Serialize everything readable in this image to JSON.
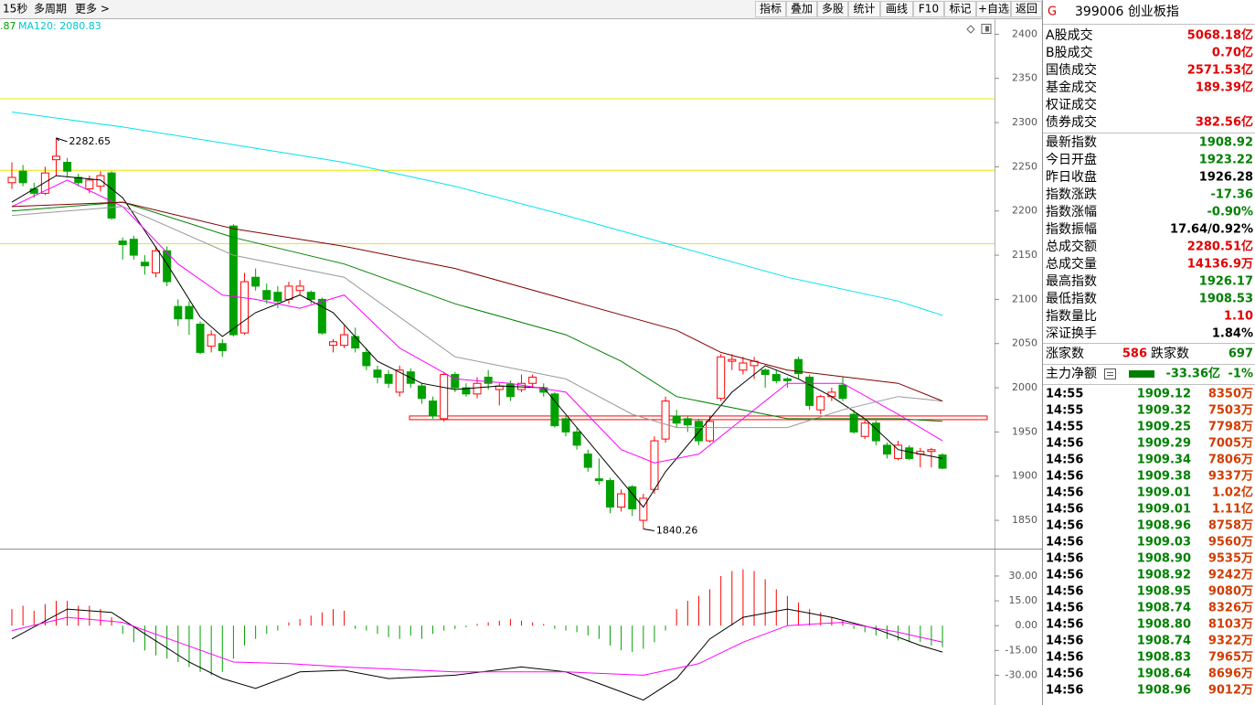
{
  "toolbar": {
    "left": [
      "15秒",
      "多周期",
      "更多 >"
    ],
    "buttons": [
      "指标",
      "叠加",
      "多股",
      "统计",
      "画线",
      "F10",
      "标记",
      "+自选",
      "返回"
    ]
  },
  "chart_data": {
    "type": "candlestick",
    "ma_labels": [
      ".87",
      "MA120: 2080.83"
    ],
    "ylim": [
      1818,
      2418
    ],
    "yticks": [
      1850,
      1900,
      1950,
      2000,
      2050,
      2100,
      2150,
      2200,
      2250,
      2300,
      2350,
      2400
    ],
    "up_color": "#ff0000",
    "down_color": "#00a000",
    "open": [
      2232,
      2245,
      2225,
      2220,
      2258,
      2255,
      2238,
      2225,
      2228,
      2243,
      2166,
      2168,
      2142,
      2130,
      2155,
      2092,
      2092,
      2072,
      2047,
      2050,
      2183,
      2062,
      2125,
      2110,
      2108,
      2100,
      2110,
      2108,
      2100,
      2048,
      2048,
      2058,
      2040,
      2020,
      2015,
      1995,
      2018,
      2002,
      1985,
      1965,
      2015,
      2000,
      1993,
      2012,
      1998,
      2004,
      1998,
      2005,
      2000,
      1993,
      1965,
      1950,
      1925,
      1897,
      1895,
      1865,
      1888,
      1850,
      1885,
      1942,
      1968,
      1965,
      1962,
      1940,
      1988,
      2030,
      2020,
      2025,
      2020,
      2015,
      2010,
      2032,
      2012,
      1975,
      1990,
      2003,
      1970,
      1945,
      1960,
      1935,
      1920,
      1932,
      1925,
      1928,
      1924
    ],
    "high": [
      2255,
      2252,
      2232,
      2250,
      2282.65,
      2260,
      2242,
      2240,
      2245,
      2245,
      2170,
      2172,
      2150,
      2160,
      2160,
      2100,
      2098,
      2075,
      2065,
      2055,
      2185,
      2130,
      2135,
      2118,
      2115,
      2120,
      2122,
      2110,
      2102,
      2055,
      2070,
      2068,
      2045,
      2025,
      2020,
      2025,
      2022,
      2005,
      1990,
      2018,
      2018,
      2005,
      2012,
      2020,
      2005,
      2008,
      2015,
      2015,
      2005,
      1995,
      1968,
      1955,
      1930,
      1920,
      1898,
      1885,
      1890,
      1880,
      1945,
      1990,
      1975,
      1968,
      1965,
      1968,
      2038,
      2038,
      2035,
      2035,
      2022,
      2020,
      2012,
      2035,
      2015,
      1992,
      2000,
      2012,
      1975,
      1965,
      1963,
      1938,
      1940,
      1935,
      1932,
      1932,
      1926
    ],
    "low": [
      2225,
      2228,
      2215,
      2218,
      2240,
      2238,
      2228,
      2220,
      2222,
      2190,
      2145,
      2145,
      2128,
      2125,
      2115,
      2070,
      2060,
      2038,
      2040,
      2035,
      2058,
      2060,
      2110,
      2095,
      2090,
      2095,
      2105,
      2095,
      2060,
      2040,
      2045,
      2040,
      2020,
      2005,
      2000,
      1990,
      2000,
      1982,
      1965,
      1962,
      1995,
      1990,
      1988,
      1998,
      1980,
      1985,
      1995,
      2000,
      1990,
      1955,
      1945,
      1930,
      1905,
      1890,
      1858,
      1860,
      1855,
      1840.26,
      1880,
      1938,
      1955,
      1950,
      1935,
      1938,
      1985,
      2020,
      2015,
      2010,
      2000,
      2005,
      2000,
      2010,
      1975,
      1970,
      1985,
      1985,
      1948,
      1942,
      1935,
      1920,
      1918,
      1918,
      1910,
      1910,
      1908
    ],
    "close": [
      2238,
      2232,
      2220,
      2243,
      2262,
      2245,
      2232,
      2235,
      2240,
      2192,
      2162,
      2150,
      2138,
      2155,
      2120,
      2078,
      2078,
      2040,
      2060,
      2042,
      2060,
      2120,
      2115,
      2100,
      2098,
      2115,
      2115,
      2100,
      2062,
      2052,
      2060,
      2045,
      2025,
      2012,
      2005,
      2020,
      2005,
      1988,
      1968,
      2015,
      2000,
      1993,
      2005,
      2005,
      2002,
      1990,
      2005,
      2012,
      1995,
      1957,
      1950,
      1935,
      1910,
      1895,
      1865,
      1880,
      1863,
      1875,
      1940,
      1985,
      1960,
      1958,
      1940,
      1962,
      2035,
      2032,
      2028,
      2030,
      2015,
      2008,
      2008,
      2016,
      1980,
      1990,
      1995,
      1988,
      1950,
      1960,
      1940,
      1925,
      1935,
      1920,
      1928,
      1930,
      1909
    ],
    "series": [
      {
        "color": "#000000",
        "x": [
          0,
          4,
          8,
          10,
          14,
          17,
          19,
          22,
          26,
          29,
          33,
          37,
          40,
          44,
          48,
          52,
          56,
          57,
          59,
          62,
          65,
          68,
          71,
          74,
          77,
          80,
          84
        ],
        "values": [
          2210,
          2240,
          2235,
          2215,
          2140,
          2080,
          2058,
          2085,
          2105,
          2085,
          2030,
          2005,
          1998,
          2002,
          2000,
          1940,
          1880,
          1865,
          1905,
          1950,
          1995,
          2025,
          2010,
          1990,
          1965,
          1930,
          1920
        ]
      },
      {
        "color": "#ff00ff",
        "x": [
          0,
          5,
          10,
          15,
          19,
          22,
          26,
          30,
          35,
          40,
          45,
          50,
          55,
          58,
          62,
          66,
          70,
          75,
          80,
          84
        ],
        "values": [
          2205,
          2235,
          2205,
          2140,
          2105,
          2100,
          2090,
          2105,
          2045,
          2010,
          2005,
          1995,
          1930,
          1915,
          1925,
          1965,
          2005,
          2005,
          1970,
          1940
        ]
      },
      {
        "color": "#999999",
        "x": [
          0,
          10,
          20,
          30,
          40,
          50,
          56,
          60,
          70,
          75,
          80,
          84
        ],
        "values": [
          2195,
          2205,
          2150,
          2125,
          2035,
          2010,
          1970,
          1955,
          1955,
          1975,
          1990,
          1985
        ]
      },
      {
        "color": "#008000",
        "x": [
          0,
          10,
          20,
          30,
          40,
          50,
          55,
          60,
          70,
          80,
          84
        ],
        "values": [
          2200,
          2210,
          2170,
          2140,
          2095,
          2060,
          2030,
          1990,
          1965,
          1965,
          1962
        ]
      },
      {
        "color": "#800000",
        "x": [
          0,
          10,
          20,
          30,
          40,
          50,
          60,
          64,
          70,
          80,
          84
        ],
        "values": [
          2205,
          2210,
          2180,
          2160,
          2135,
          2100,
          2065,
          2040,
          2020,
          2005,
          1985
        ]
      },
      {
        "color": "#00e5ee",
        "x": [
          0,
          10,
          20,
          30,
          40,
          50,
          60,
          70,
          80,
          84
        ],
        "values": [
          2312,
          2295,
          2275,
          2255,
          2228,
          2195,
          2160,
          2125,
          2098,
          2082
        ]
      }
    ],
    "price_lines": [
      {
        "value": 2327,
        "color": "#e8e800"
      },
      {
        "value": 2246,
        "color": "#e8e800"
      },
      {
        "value": 2163,
        "color": "#e8e800"
      },
      {
        "value": 1966,
        "color": "#ff0000"
      }
    ],
    "macd": {
      "ylim": [
        -48,
        46
      ],
      "yticks": [
        {
          "value": 30,
          "label": "30.00"
        },
        {
          "value": 15,
          "label": "15.00"
        },
        {
          "value": 0,
          "label": "0.00"
        },
        {
          "value": -15,
          "label": "-15.00"
        },
        {
          "value": -30,
          "label": "-30.00"
        }
      ],
      "histogram": [
        10,
        12,
        9,
        13,
        15,
        15,
        12,
        12,
        10,
        5,
        -5,
        -10,
        -15,
        -18,
        -20,
        -22,
        -25,
        -28,
        -30,
        -28,
        -20,
        -12,
        -8,
        -5,
        -3,
        2,
        4,
        6,
        8,
        10,
        9,
        -2,
        -3,
        -5,
        -7,
        -8,
        -6,
        -8,
        -5,
        -3,
        -2,
        -1,
        1,
        2,
        3,
        4,
        3,
        2,
        1,
        -2,
        -3,
        -4,
        -6,
        -8,
        -12,
        -15,
        -16,
        -14,
        -10,
        -3,
        10,
        15,
        18,
        22,
        30,
        33,
        34,
        33,
        28,
        22,
        18,
        14,
        10,
        8,
        5,
        3,
        -2,
        -4,
        -6,
        -8,
        -9,
        -10,
        -10,
        -12,
        -13
      ],
      "lines": [
        {
          "color": "#000000",
          "x": [
            0,
            5,
            9,
            12,
            16,
            19,
            22,
            26,
            30,
            34,
            40,
            46,
            50,
            53,
            57,
            60,
            63,
            66,
            70,
            74,
            78,
            82,
            84
          ],
          "values": [
            -8,
            10,
            8,
            -5,
            -22,
            -32,
            -38,
            -28,
            -27,
            -32,
            -30,
            -25,
            -28,
            -35,
            -45,
            -32,
            -8,
            5,
            10,
            5,
            -2,
            -12,
            -16
          ]
        },
        {
          "color": "#ff00ff",
          "x": [
            0,
            5,
            10,
            15,
            20,
            25,
            30,
            40,
            50,
            57,
            62,
            66,
            70,
            75,
            80,
            84
          ],
          "values": [
            -3,
            5,
            2,
            -10,
            -22,
            -23,
            -25,
            -28,
            -28,
            -30,
            -23,
            -10,
            0,
            2,
            -4,
            -10
          ]
        }
      ]
    }
  },
  "panel": {
    "flag": "G",
    "title": "399006 创业板指",
    "turnover": [
      {
        "label": "A股成交",
        "value": "5068.18亿"
      },
      {
        "label": "B股成交",
        "value": "0.70亿"
      },
      {
        "label": "国债成交",
        "value": "2571.53亿"
      },
      {
        "label": "基金成交",
        "value": "189.39亿"
      },
      {
        "label": "权证成交"
      },
      {
        "label": "债券成交",
        "value": "382.56亿"
      }
    ],
    "stats": [
      {
        "label": "最新指数",
        "value": "1908.92",
        "color": "#008000"
      },
      {
        "label": "今日开盘",
        "value": "1923.22",
        "color": "#008000"
      },
      {
        "label": "昨日收盘",
        "value": "1926.28",
        "color": "#000000"
      },
      {
        "label": "指数涨跌",
        "value": "-17.36",
        "color": "#008000"
      },
      {
        "label": "指数涨幅",
        "value": "-0.90%",
        "color": "#008000"
      },
      {
        "label": "指数振幅",
        "value": "17.64/0.92%",
        "color": "#000000"
      },
      {
        "label": "总成交额",
        "value": "2280.51亿",
        "color": "#e00000"
      },
      {
        "label": "总成交量",
        "value": "14136.9万",
        "color": "#e00000"
      },
      {
        "label": "最高指数",
        "value": "1926.17",
        "color": "#008000"
      },
      {
        "label": "最低指数",
        "value": "1908.53",
        "color": "#008000"
      },
      {
        "label": "指数量比",
        "value": "1.10",
        "color": "#e00000"
      },
      {
        "label": "深证换手",
        "value": "1.84%",
        "color": "#000000"
      }
    ],
    "breadth": {
      "up_label": "涨家数",
      "up": 586,
      "down_label": "跌家数",
      "down": 697
    },
    "flow": {
      "label": "主力净额",
      "value": "-33.36亿",
      "pct": "-1%"
    },
    "trades": [
      [
        "14:55",
        "1909.12",
        "8350万"
      ],
      [
        "14:55",
        "1909.32",
        "7503万"
      ],
      [
        "14:55",
        "1909.25",
        "7798万"
      ],
      [
        "14:56",
        "1909.29",
        "7005万"
      ],
      [
        "14:56",
        "1909.34",
        "7806万"
      ],
      [
        "14:56",
        "1909.38",
        "9337万"
      ],
      [
        "14:56",
        "1909.01",
        "1.02亿"
      ],
      [
        "14:56",
        "1909.01",
        "1.11亿"
      ],
      [
        "14:56",
        "1908.96",
        "8758万"
      ],
      [
        "14:56",
        "1909.03",
        "9560万"
      ],
      [
        "14:56",
        "1908.90",
        "9535万"
      ],
      [
        "14:56",
        "1908.92",
        "9242万"
      ],
      [
        "14:56",
        "1908.95",
        "9080万"
      ],
      [
        "14:56",
        "1908.74",
        "8326万"
      ],
      [
        "14:56",
        "1908.80",
        "8103万"
      ],
      [
        "14:56",
        "1908.74",
        "9322万"
      ],
      [
        "14:56",
        "1908.83",
        "7965万"
      ],
      [
        "14:56",
        "1908.64",
        "8696万"
      ],
      [
        "14:56",
        "1908.96",
        "9012万"
      ]
    ]
  }
}
